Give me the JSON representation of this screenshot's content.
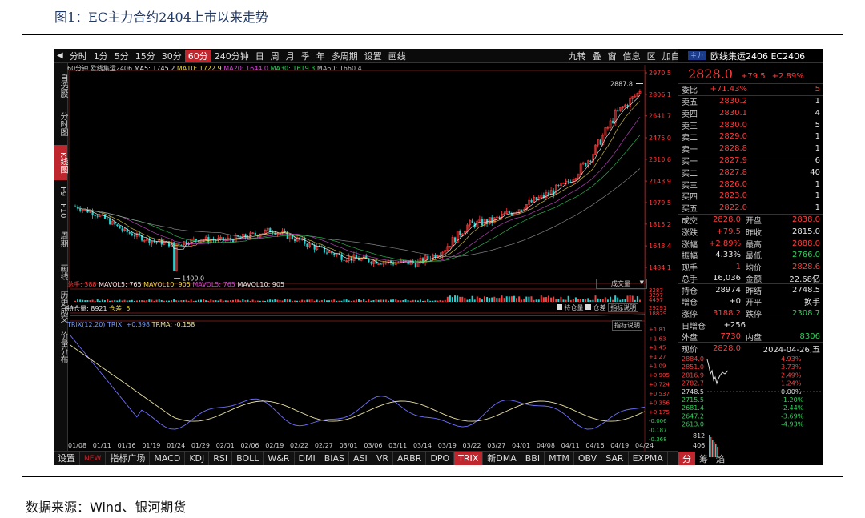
{
  "figure": {
    "title": "图1：EC主力合约2404上市以来走势",
    "source": "数据来源：Wind、银河期货"
  },
  "toolbar": {
    "periods": [
      "分时",
      "1分",
      "5分",
      "15分",
      "30分",
      "60分",
      "240分钟",
      "日",
      "周",
      "月",
      "季",
      "年",
      "多周期",
      "设置",
      "画线"
    ],
    "active": "60分",
    "right": [
      "九转",
      "叠",
      "窗",
      "信息",
      "区",
      "加自选"
    ]
  },
  "left_tabs": [
    "自选股",
    "分时图",
    "K线图",
    "F9",
    "F10",
    "周期",
    "画线",
    "历史成交",
    "价量分布"
  ],
  "left_active": "K线图",
  "info_line": {
    "period": "60分钟",
    "name": "欧线集运2406",
    "ma5": "MA5: 1745.2",
    "ma10": "MA10: 1722.9",
    "ma20": "MA20: 1644.0",
    "ma30": "MA30: 1619.3",
    "ma60": "MA60: 1660.4"
  },
  "vol_info": {
    "total": "总手: 388",
    "mavol5": "MAVOL5: 765",
    "mavol10": "MAVOL10: 905",
    "mavol5b": "MAVOL5: 765",
    "mavol10b": "MAVOL10: 905",
    "dropdown": "成交量"
  },
  "oi_info": {
    "label": "持仓量: 8921",
    "chg": "仓差: 5",
    "chk1": "持仓量",
    "chk2": "仓差",
    "btn": "指标说明"
  },
  "trix_info": {
    "label": "TRIX(12,20)",
    "trix": "TRIX: +0.398",
    "trma": "TRMA: -0.158",
    "btn": "指标说明"
  },
  "bottom_tabs": [
    "设置",
    "NEW",
    "指标广场",
    "MACD",
    "KDJ",
    "RSI",
    "BOLL",
    "W&R",
    "DMI",
    "BIAS",
    "ASI",
    "VR",
    "ARBR",
    "DPO",
    "TRIX",
    "新DMA",
    "BBI",
    "MTM",
    "OBV",
    "SAR",
    "EXPMA"
  ],
  "bottom_active": "TRIX",
  "colors": {
    "up": "#ff3b3b",
    "down": "#23d3d3",
    "ma5": "#ffffff",
    "ma10": "#e8d544",
    "ma20": "#d04bd0",
    "ma30": "#2fd05a",
    "ma60": "#9a9a9a",
    "trix": "#6f6fff",
    "trma": "#e8e0a0"
  },
  "chart_data": {
    "type": "candlestick",
    "price_axis": [
      "2970.5",
      "2806.1",
      "2641.7",
      "2475.0",
      "2310.6",
      "2143.9",
      "1979.5",
      "1815.2",
      "1648.4",
      "1484.1"
    ],
    "ylim": [
      1380,
      2970.5
    ],
    "x_dates": [
      "01/08",
      "01/11",
      "01/16",
      "01/19",
      "01/24",
      "01/29",
      "02/01",
      "02/06",
      "02/19",
      "02/22",
      "02/27",
      "03/01",
      "03/06",
      "03/11",
      "03/14",
      "03/19",
      "03/22",
      "03/27",
      "04/01",
      "04/08",
      "04/11",
      "04/16",
      "04/19",
      "04/24"
    ],
    "high_label": "2887.8",
    "low_label": "1400.0",
    "close_path": [
      [
        "01/08",
        1950
      ],
      [
        "01/11",
        1880
      ],
      [
        "01/16",
        1760
      ],
      [
        "01/19",
        1690
      ],
      [
        "01/24",
        1660
      ],
      [
        "01/29",
        1700
      ],
      [
        "02/01",
        1690
      ],
      [
        "02/06",
        1720
      ],
      [
        "02/19",
        1770
      ],
      [
        "02/22",
        1700
      ],
      [
        "02/27",
        1620
      ],
      [
        "03/01",
        1560
      ],
      [
        "03/06",
        1540
      ],
      [
        "03/11",
        1520
      ],
      [
        "03/14",
        1520
      ],
      [
        "03/19",
        1620
      ],
      [
        "03/22",
        1810
      ],
      [
        "03/27",
        1840
      ],
      [
        "04/01",
        1930
      ],
      [
        "04/08",
        2020
      ],
      [
        "04/11",
        2120
      ],
      [
        "04/16",
        2330
      ],
      [
        "04/19",
        2650
      ],
      [
        "04/24",
        2828
      ]
    ],
    "volume_axis": [
      "3287",
      "3297",
      "4497"
    ],
    "oi_axis": [
      "29291",
      "18829"
    ],
    "trix_axis": [
      "+1.81",
      "+1.63",
      "+1.45",
      "+1.27",
      "+1.09",
      "+0.905",
      "+0.724",
      "+0.537",
      "+0.356",
      "+0.175",
      "-0.006",
      "-0.187",
      "-0.368"
    ],
    "trix_ylim": [
      -0.368,
      1.81
    ]
  },
  "quote": {
    "tag": "主力",
    "name": "欧线集运2406 EC2406",
    "price": "2828.0",
    "chg": "+79.5",
    "pct": "+2.89%",
    "weibi": {
      "k": "委比",
      "v": "+71.43%",
      "n": "5"
    },
    "asks": [
      [
        "卖五",
        "2830.2",
        "1"
      ],
      [
        "卖四",
        "2830.1",
        "4"
      ],
      [
        "卖三",
        "2830.0",
        "5"
      ],
      [
        "卖二",
        "2829.0",
        "1"
      ],
      [
        "卖一",
        "2828.8",
        "1"
      ]
    ],
    "bids": [
      [
        "买一",
        "2827.9",
        "6"
      ],
      [
        "买二",
        "2827.8",
        "40"
      ],
      [
        "买三",
        "2826.0",
        "1"
      ],
      [
        "买四",
        "2823.0",
        "1"
      ],
      [
        "买五",
        "2822.0",
        "1"
      ]
    ],
    "stats": [
      [
        "成交",
        "2828.0",
        "开盘",
        "2838.0"
      ],
      [
        "涨跌",
        "+79.5",
        "昨收",
        "2815.0"
      ],
      [
        "涨幅",
        "+2.89%",
        "最高",
        "2888.0"
      ],
      [
        "振幅",
        "4.33%",
        "最低",
        "2766.0"
      ],
      [
        "现手",
        "1",
        "均价",
        "2828.6"
      ],
      [
        "总手",
        "16,036",
        "金额",
        "22.68亿"
      ],
      [
        "持仓",
        "28974",
        "昨结",
        "2748.5"
      ],
      [
        "增仓",
        "+0",
        "开平",
        "换手"
      ],
      [
        "涨停",
        "3188.2",
        "跌停",
        "2308.7"
      ]
    ],
    "rizeng": [
      "日增仓",
      "+256"
    ],
    "waipan": [
      "外盘",
      "7730",
      "内盘",
      "8306"
    ],
    "xianjia": [
      "现价",
      "2828.0",
      "2024-04-26,五"
    ],
    "mini_left": [
      "2884.0",
      "2851.0",
      "2816.9",
      "2782.7",
      "2748.5",
      "2715.5",
      "2681.4",
      "2647.2",
      "2613.0"
    ],
    "mini_right": [
      "4.93%",
      "3.73%",
      "2.49%",
      "1.24%",
      "0.00%",
      "-1.20%",
      "-2.44%",
      "-3.69%",
      "-4.93%"
    ],
    "mini_vol": [
      "812",
      "406"
    ],
    "tabs": [
      "分",
      "筹",
      "焰"
    ]
  }
}
